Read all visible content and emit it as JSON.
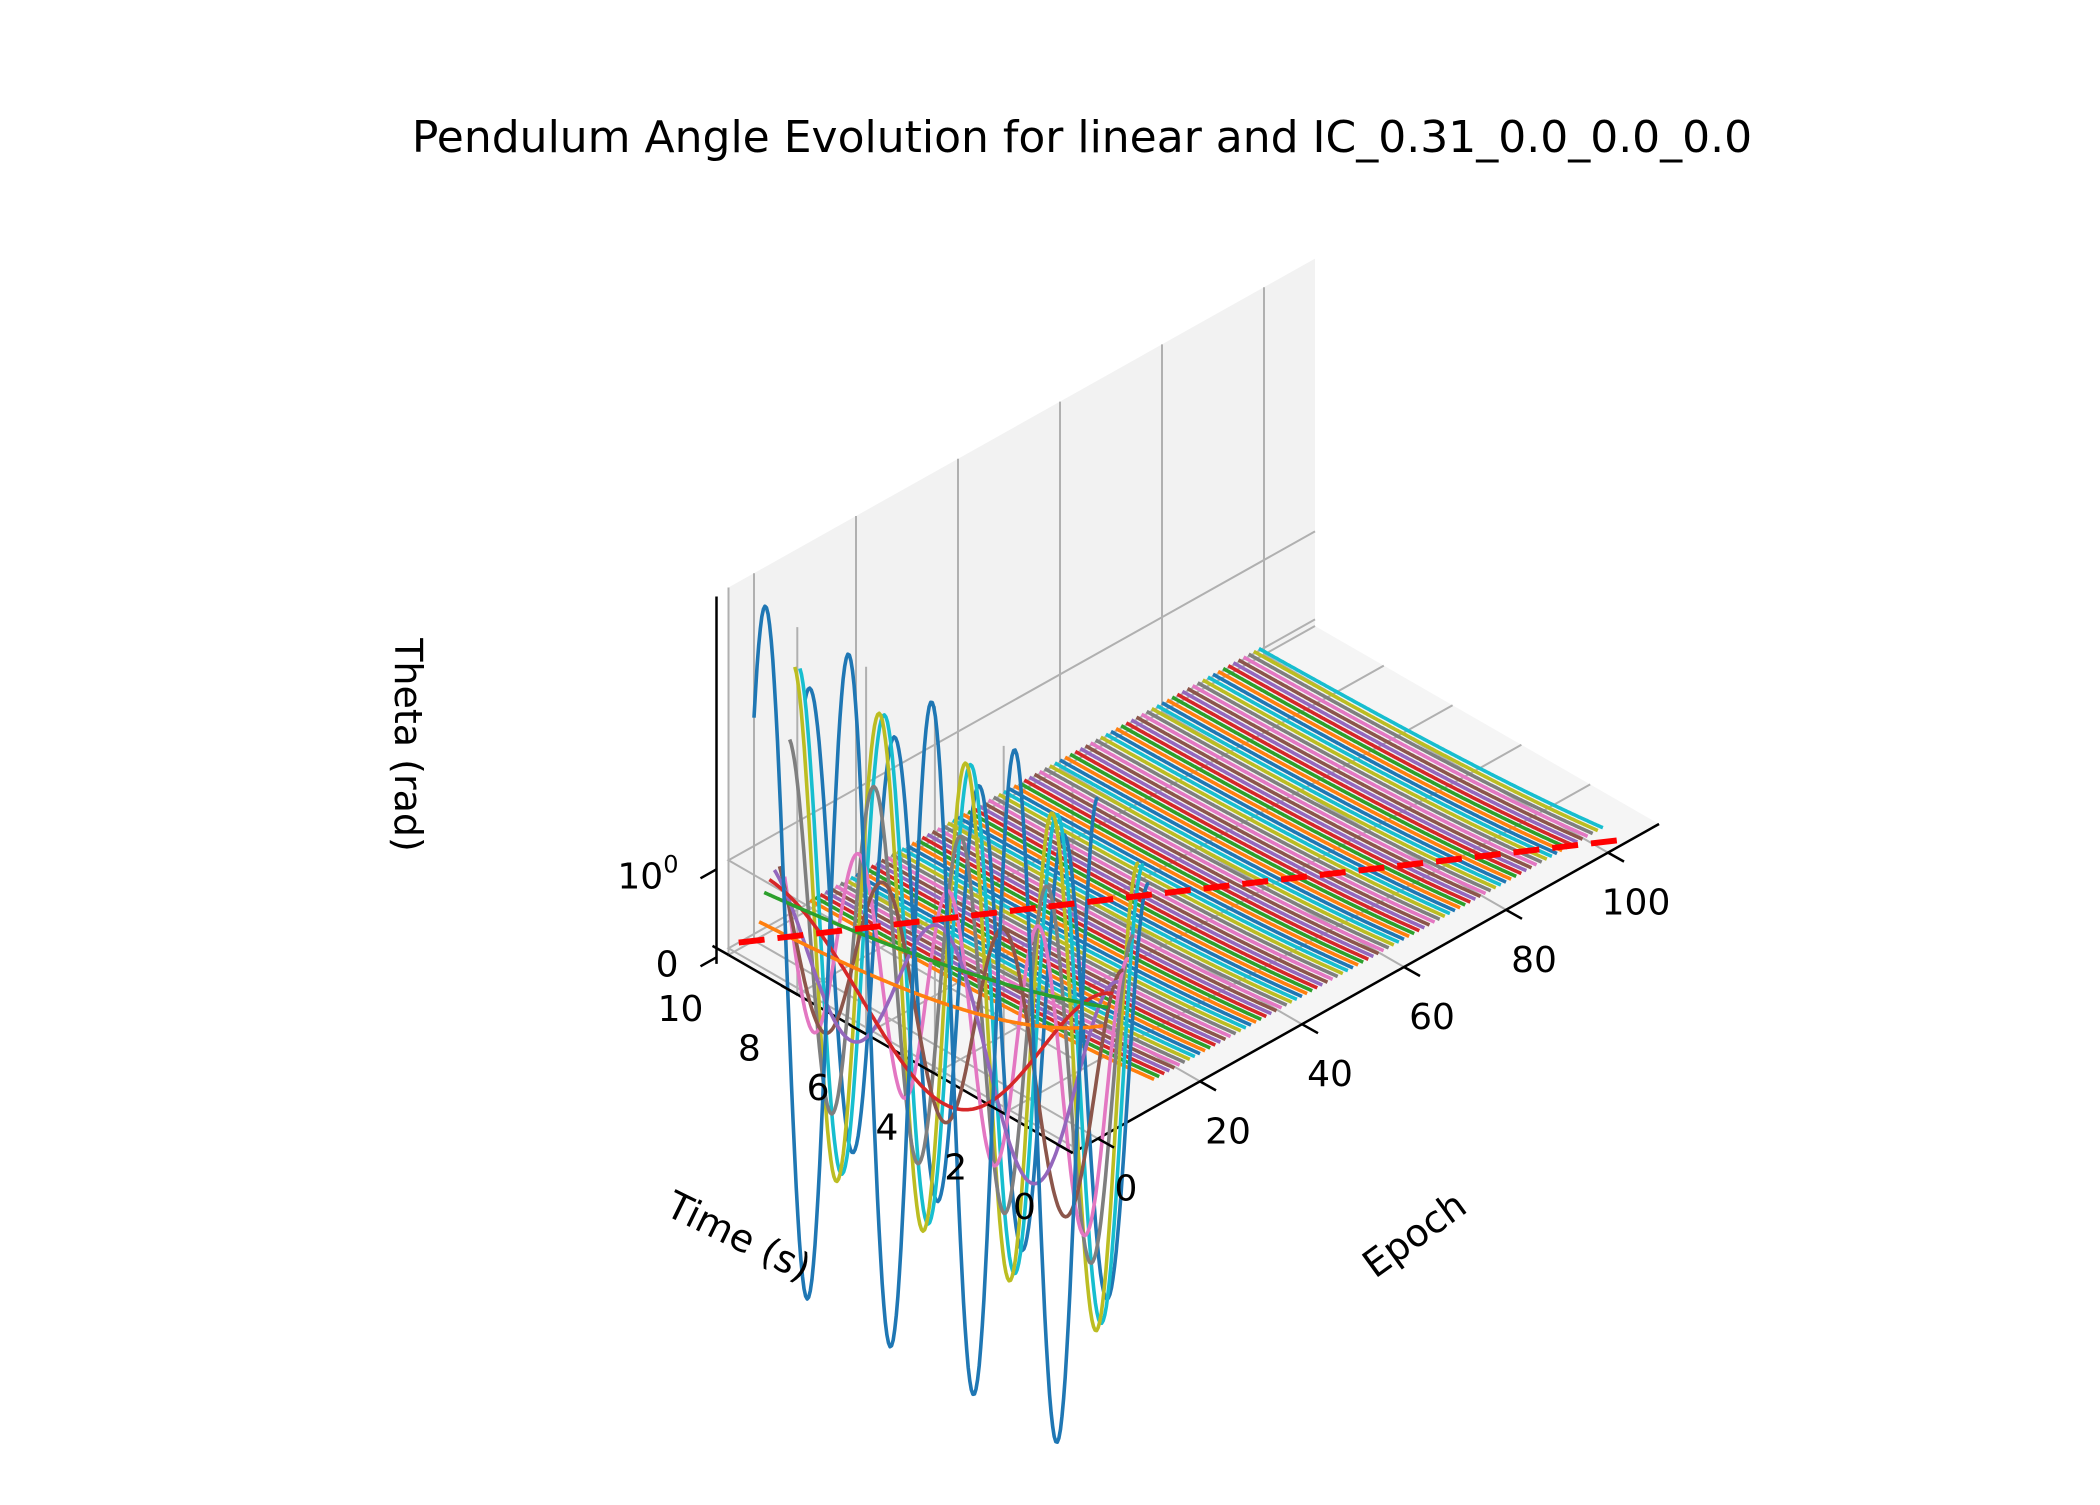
{
  "title": "Pendulum Angle Evolution for linear and IC_0.31_0.0_0.0_0.0",
  "chart_data": {
    "type": "line",
    "projection": "3d",
    "title": "Pendulum Angle Evolution for linear and IC_0.31_0.0_0.0_0.0",
    "xlabel": "Epoch",
    "ylabel": "Time (s)",
    "zlabel": "Theta (rad)",
    "z_scale": "symlog",
    "x_ticks": [
      "0",
      "20",
      "40",
      "60",
      "80",
      "100"
    ],
    "y_ticks": [
      "0",
      "2",
      "4",
      "6",
      "8",
      "10"
    ],
    "z_ticks": [
      {
        "main": "0",
        "exp": ""
      },
      {
        "main": "10",
        "exp": "0"
      }
    ],
    "xlim": [
      -5,
      110
    ],
    "ylim": [
      0,
      10
    ],
    "zlim": [
      -0.15,
      8.2
    ],
    "grid": true,
    "legend": "none",
    "epochs_count": 100,
    "color_cycle": [
      "#1f77b4",
      "#ff7f0e",
      "#2ca02c",
      "#d62728",
      "#9467bd",
      "#8c564b",
      "#e377c2",
      "#7f7f7f",
      "#bcbd22",
      "#17becf"
    ],
    "reference_line": {
      "style": "dashed",
      "color": "#ff0000",
      "time": 10,
      "theta": 0
    },
    "series": [
      {
        "epoch": 0,
        "color": "#1f77b4",
        "amp": 7.6,
        "omega": 2.6,
        "phase": 0.0,
        "decay": 0.0,
        "offset": 0.0
      },
      {
        "epoch": 1,
        "color": "#ff7f0e",
        "amp": 2.35,
        "omega": 0.0,
        "phase": 0.0,
        "decay": 0.24,
        "offset": 0.0
      },
      {
        "epoch": 2,
        "color": "#2ca02c",
        "amp": 2.7,
        "omega": 0.0,
        "phase": 0.0,
        "decay": 0.12,
        "offset": 0.0
      },
      {
        "epoch": 3,
        "color": "#d62728",
        "amp": 2.95,
        "omega": 0.6,
        "phase": 0.0,
        "decay": 0.1,
        "offset": 0.0
      },
      {
        "epoch": 4,
        "color": "#9467bd",
        "amp": 3.15,
        "omega": 1.2,
        "phase": 0.0,
        "decay": 0.08,
        "offset": 0.0
      },
      {
        "epoch": 5,
        "color": "#8c564b",
        "amp": 3.35,
        "omega": 1.8,
        "phase": 0.0,
        "decay": 0.06,
        "offset": 0.0
      },
      {
        "epoch": 6,
        "color": "#e377c2",
        "amp": 3.55,
        "omega": 2.4,
        "phase": 0.0,
        "decay": 0.05,
        "offset": 0.0
      },
      {
        "epoch": 7,
        "color": "#7f7f7f",
        "amp": 4.0,
        "omega": 2.5,
        "phase": 0.0,
        "decay": 0.0,
        "offset": 0.0
      },
      {
        "epoch": 8,
        "color": "#bcbd22",
        "amp": 5.6,
        "omega": 2.5,
        "phase": 0.0,
        "decay": 0.0,
        "offset": 0.0
      },
      {
        "epoch": 9,
        "color": "#17becf",
        "amp": 5.5,
        "omega": 2.5,
        "phase": 0.0,
        "decay": 0.0,
        "offset": 0.0
      },
      {
        "epoch": 10,
        "color": "#1f77b4",
        "amp": 5.0,
        "omega": 2.55,
        "phase": 0.0,
        "decay": 0.0,
        "offset": 0.0
      }
    ],
    "converged_series": {
      "from_epoch": 11,
      "to_epoch": 99,
      "amp": 0.48,
      "decay": 0.22,
      "note_shape": "damped"
    }
  }
}
